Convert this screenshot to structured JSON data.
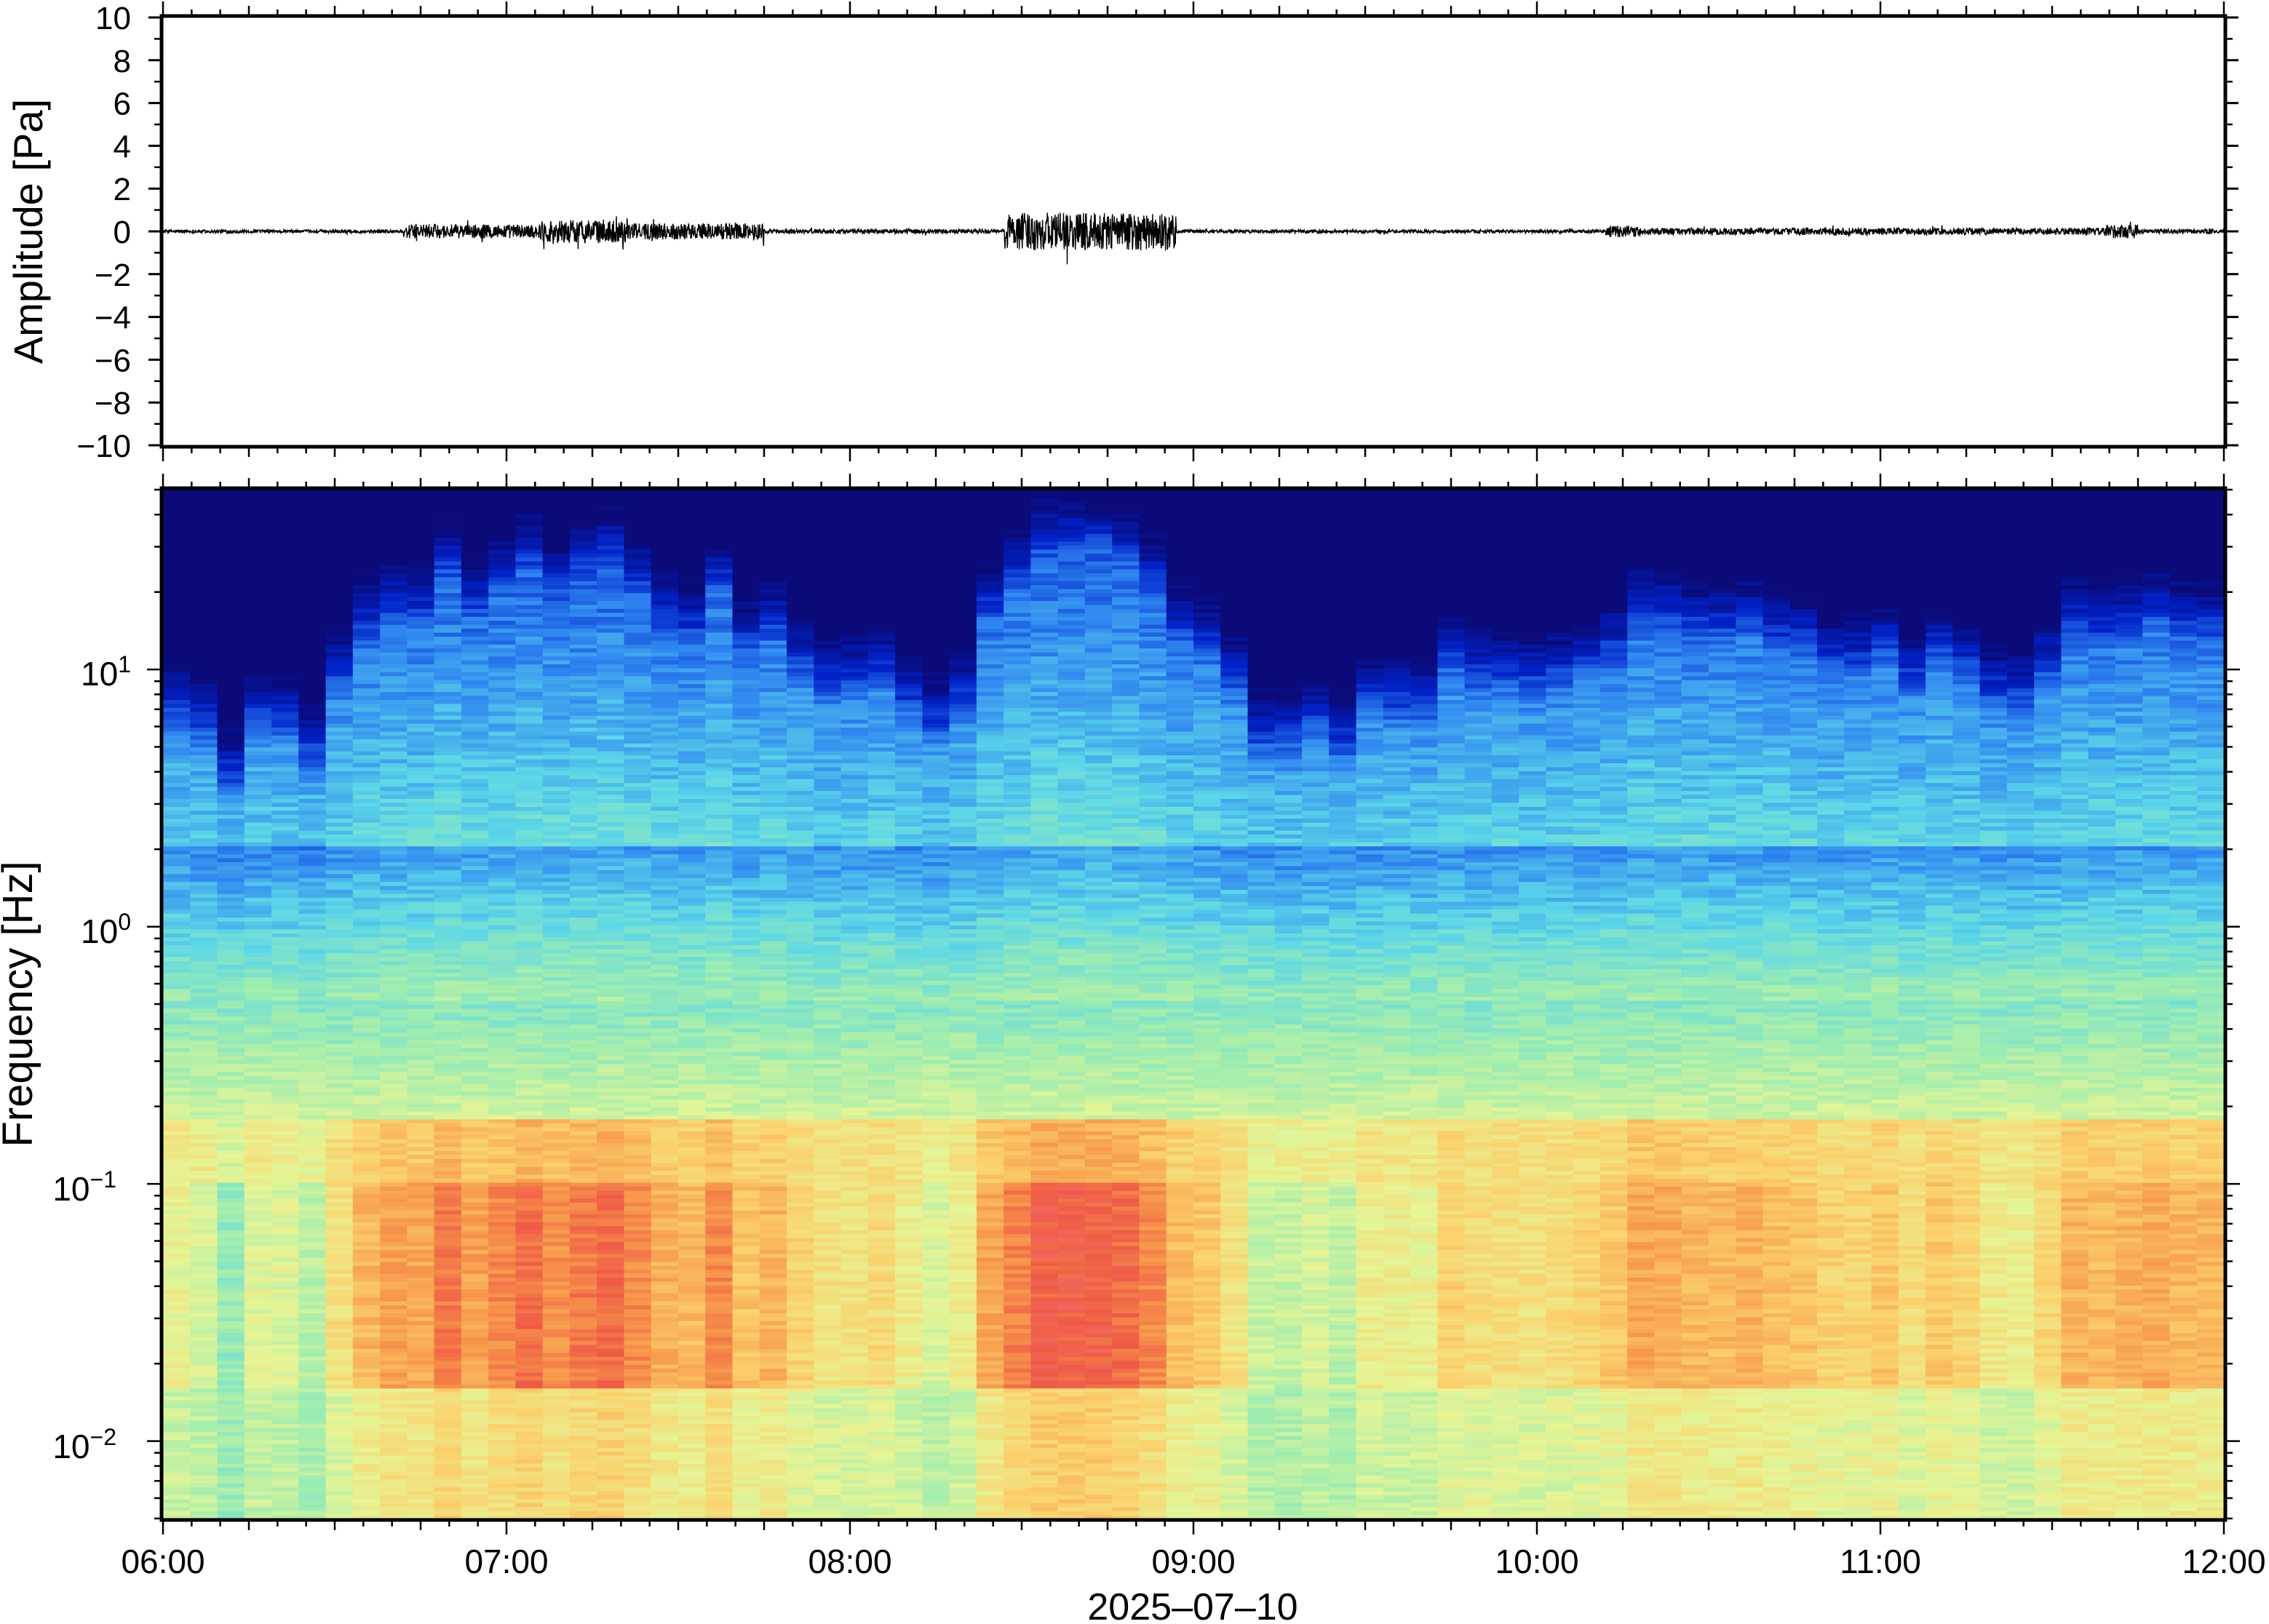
{
  "chart_data": [
    {
      "type": "line",
      "panel": "waveform",
      "ylabel": "Amplitude [Pa]",
      "ylim": [
        -10,
        10
      ],
      "y_ticks": [
        10,
        8,
        6,
        4,
        2,
        0,
        -2,
        -4,
        -6,
        -8,
        -10
      ],
      "y_tick_labels": [
        "10",
        "8",
        "6",
        "4",
        "2",
        "0",
        "−2",
        "−4",
        "−6",
        "−8",
        "−10"
      ],
      "x_time_range_hours": [
        6,
        12
      ],
      "grid": false,
      "bursts": [
        {
          "start_h": 6.0,
          "end_h": 6.7,
          "max_pa": 0.15
        },
        {
          "start_h": 6.7,
          "end_h": 7.1,
          "max_pa": 0.6
        },
        {
          "start_h": 7.1,
          "end_h": 7.35,
          "max_pa": 1.0
        },
        {
          "start_h": 7.35,
          "end_h": 7.75,
          "max_pa": 0.7
        },
        {
          "start_h": 7.75,
          "end_h": 8.45,
          "max_pa": 0.2
        },
        {
          "start_h": 8.45,
          "end_h": 8.95,
          "max_pa": 1.6
        },
        {
          "start_h": 8.95,
          "end_h": 10.2,
          "max_pa": 0.15
        },
        {
          "start_h": 10.2,
          "end_h": 10.3,
          "max_pa": 0.5
        },
        {
          "start_h": 10.3,
          "end_h": 11.65,
          "max_pa": 0.3
        },
        {
          "start_h": 11.65,
          "end_h": 11.75,
          "max_pa": 0.6
        },
        {
          "start_h": 11.75,
          "end_h": 12.0,
          "max_pa": 0.2
        }
      ]
    },
    {
      "type": "heatmap",
      "panel": "spectrogram",
      "ylabel": "Frequency [Hz]",
      "xlabel": "2025–07–10",
      "y_scale": "log",
      "ylim_hz": [
        0.005,
        50
      ],
      "y_tick_labels": [
        {
          "base": "10",
          "exp": "1"
        },
        {
          "base": "10",
          "exp": "0"
        },
        {
          "base": "10",
          "exp": "−1"
        },
        {
          "base": "10",
          "exp": "−2"
        }
      ],
      "x_tick_labels": [
        "06:00",
        "07:00",
        "08:00",
        "09:00",
        "10:00",
        "11:00",
        "12:00"
      ],
      "colormap": [
        "#0a0a78",
        "#0022c8",
        "#2f86f0",
        "#5cd7e8",
        "#9eedb0",
        "#e6f596",
        "#fbd16c",
        "#f79a4c",
        "#ef5a46",
        "#f58aa0"
      ],
      "activity_by_time": [
        {
          "h": 6.0,
          "level": 0.25
        },
        {
          "h": 6.2,
          "level": 0.15
        },
        {
          "h": 6.45,
          "level": 0.3
        },
        {
          "h": 6.7,
          "level": 0.75
        },
        {
          "h": 7.0,
          "level": 0.85
        },
        {
          "h": 7.3,
          "level": 0.85
        },
        {
          "h": 7.6,
          "level": 0.75
        },
        {
          "h": 7.9,
          "level": 0.55
        },
        {
          "h": 8.1,
          "level": 0.45
        },
        {
          "h": 8.3,
          "level": 0.25
        },
        {
          "h": 8.5,
          "level": 0.95
        },
        {
          "h": 8.75,
          "level": 1.0
        },
        {
          "h": 8.95,
          "level": 0.7
        },
        {
          "h": 9.2,
          "level": 0.3
        },
        {
          "h": 9.4,
          "level": 0.25
        },
        {
          "h": 9.7,
          "level": 0.5
        },
        {
          "h": 10.0,
          "level": 0.45
        },
        {
          "h": 10.3,
          "level": 0.65
        },
        {
          "h": 10.6,
          "level": 0.7
        },
        {
          "h": 10.9,
          "level": 0.6
        },
        {
          "h": 11.2,
          "level": 0.45
        },
        {
          "h": 11.5,
          "level": 0.5
        },
        {
          "h": 11.75,
          "level": 0.7
        },
        {
          "h": 12.0,
          "level": 0.65
        }
      ]
    }
  ]
}
